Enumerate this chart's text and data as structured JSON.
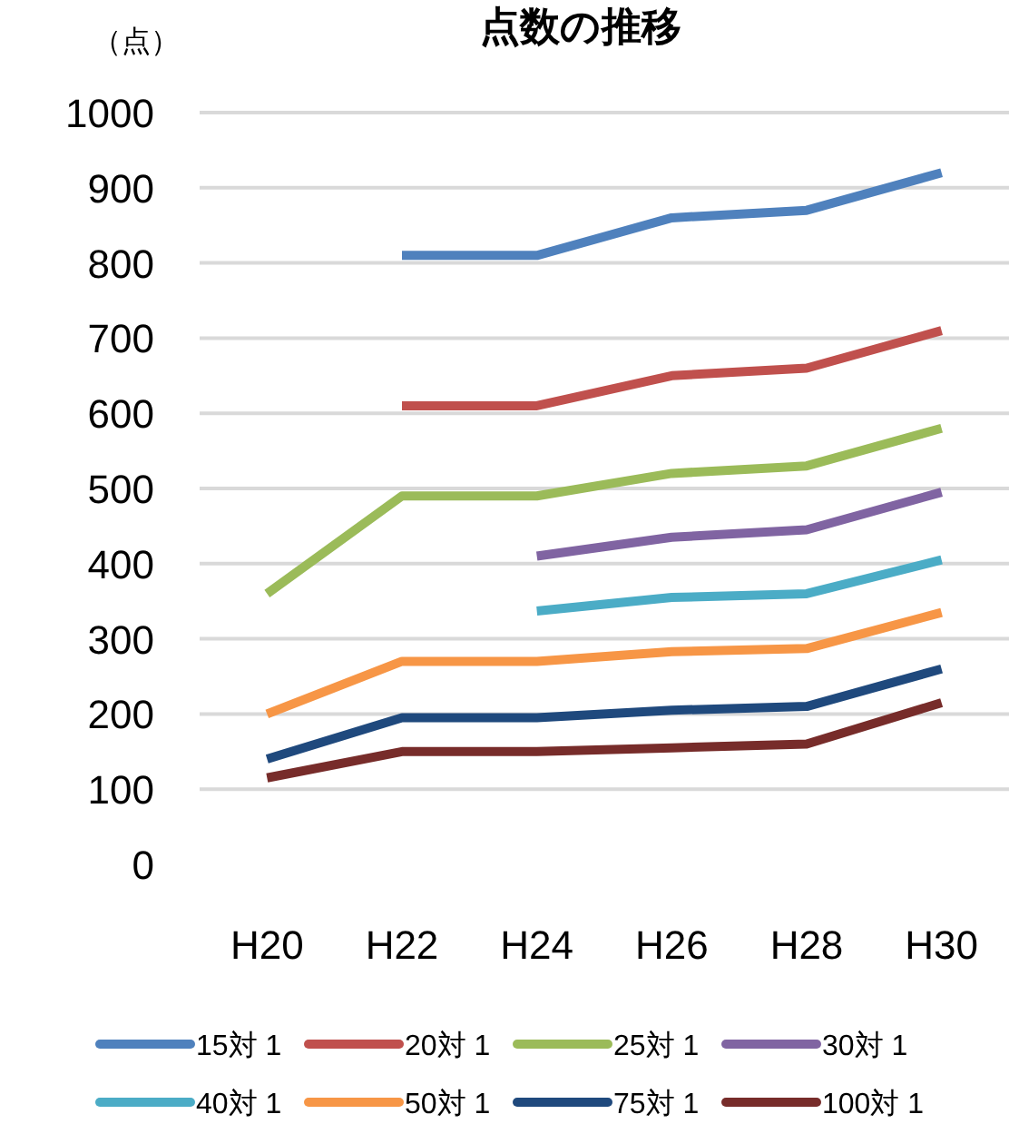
{
  "chart_data": {
    "type": "line",
    "title": "点数の推移",
    "ylabel": "（点）",
    "categories": [
      "H20",
      "H22",
      "H24",
      "H26",
      "H28",
      "H30"
    ],
    "ylim": [
      0,
      1000
    ],
    "yticks": [
      0,
      100,
      200,
      300,
      400,
      500,
      600,
      700,
      800,
      900,
      1000
    ],
    "grid": "y",
    "legend": "bottom",
    "marker": "none",
    "series": [
      {
        "name": "15対 1",
        "color": "#4f81bd",
        "values": [
          null,
          810,
          810,
          860,
          870,
          920
        ]
      },
      {
        "name": "20対 1",
        "color": "#c0504d",
        "values": [
          null,
          610,
          610,
          650,
          660,
          710
        ]
      },
      {
        "name": "25対 1",
        "color": "#9bbb59",
        "values": [
          360,
          490,
          490,
          520,
          530,
          580
        ]
      },
      {
        "name": "30対 1",
        "color": "#8064a2",
        "values": [
          null,
          null,
          410,
          435,
          445,
          495
        ]
      },
      {
        "name": "40対 1",
        "color": "#4bacc6",
        "values": [
          null,
          null,
          337,
          355,
          360,
          405
        ]
      },
      {
        "name": "50対 1",
        "color": "#f79646",
        "values": [
          200,
          270,
          270,
          283,
          287,
          335
        ]
      },
      {
        "name": "75対 1",
        "color": "#1f497d",
        "values": [
          140,
          195,
          195,
          205,
          210,
          260
        ]
      },
      {
        "name": "100対 1",
        "color": "#772c2a",
        "values": [
          115,
          150,
          150,
          155,
          160,
          215
        ]
      }
    ]
  }
}
